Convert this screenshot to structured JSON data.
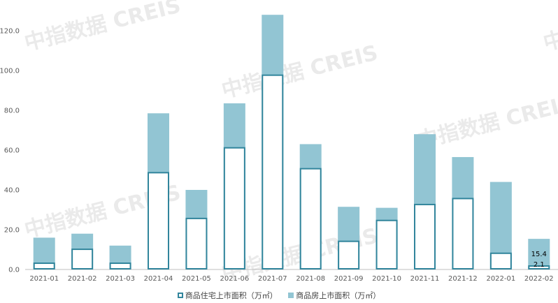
{
  "chart_data": {
    "type": "bar",
    "categories": [
      "2021-01",
      "2021-02",
      "2021-03",
      "2021-04",
      "2021-05",
      "2021-06",
      "2021-07",
      "2021-08",
      "2021-09",
      "2021-10",
      "2021-11",
      "2021-12",
      "2022-01",
      "2022-02"
    ],
    "series": [
      {
        "name": "商品住宅上市面积（万㎡）",
        "values": [
          3.5,
          10.5,
          3.5,
          49,
          26,
          61.5,
          98,
          51,
          14.5,
          25,
          33,
          36,
          8.5,
          2.1
        ],
        "style": "outline"
      },
      {
        "name": "商品房上市面积（万㎡）",
        "values": [
          16,
          18,
          12,
          78.5,
          40,
          83.5,
          128,
          63,
          31.5,
          31,
          68,
          56.5,
          44,
          15.4
        ],
        "style": "filled"
      }
    ],
    "y_ticks": [
      "0.0",
      "20.0",
      "40.0",
      "60.0",
      "80.0",
      "100.0",
      "120.0"
    ],
    "ylim": [
      0,
      130
    ],
    "data_labels": [
      {
        "category": "2022-02",
        "series": "商品房上市面积（万㎡）",
        "text": "15.4"
      },
      {
        "category": "2022-02",
        "series": "商品住宅上市面积（万㎡）",
        "text": "2.1"
      }
    ],
    "grid": false,
    "legend_position": "bottom"
  },
  "watermark": "中指数据 CREIS",
  "colors": {
    "outline_series": "#31859c",
    "filled_series": "#92c5d3",
    "axis": "#bfbfbf",
    "tick_text": "#595959"
  }
}
